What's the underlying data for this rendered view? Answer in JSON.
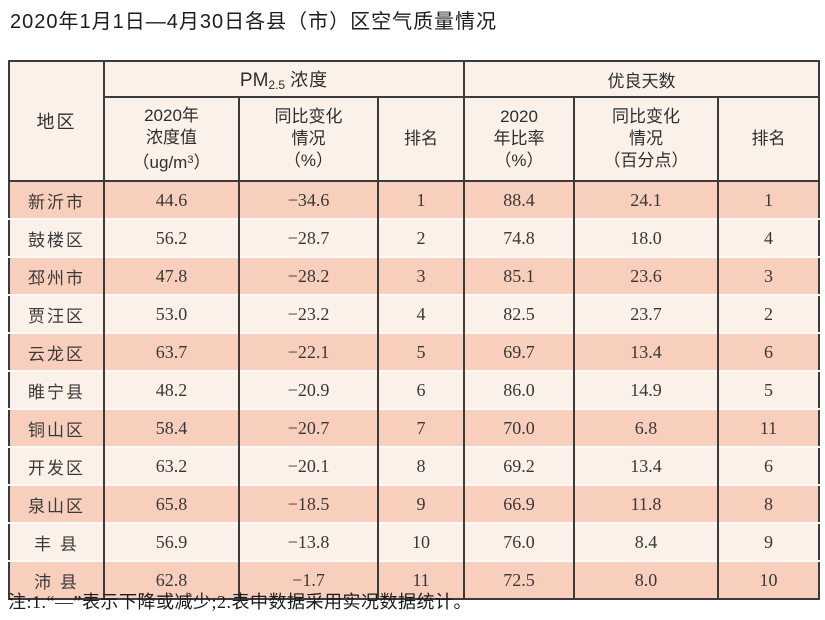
{
  "title": "2020年1月1日—4月30日各县（市）区空气质量情况",
  "table": {
    "header": {
      "region": "地区",
      "pm_group": {
        "base": "PM",
        "sub": "2.5",
        "label": "浓度"
      },
      "good_group": "优良天数",
      "pm_value": {
        "line1": "2020年",
        "line2": "浓度值",
        "line3_pre": "（ug/m",
        "line3_sup": "3",
        "line3_post": "）"
      },
      "pm_change": {
        "line1": "同比变化",
        "line2": "情况",
        "line3": "（%）"
      },
      "pm_rank": "排名",
      "good_ratio": {
        "line1": "2020",
        "line2": "年比率",
        "line3": "（%）"
      },
      "good_change": {
        "line1": "同比变化",
        "line2": "情况",
        "line3": "（百分点）"
      },
      "good_rank": "排名"
    },
    "rows": [
      {
        "region": "新沂市",
        "pm_value": "44.6",
        "pm_change": "−34.6",
        "pm_rank": "1",
        "good_ratio": "88.4",
        "good_change": "24.1",
        "good_rank": "1"
      },
      {
        "region": "鼓楼区",
        "pm_value": "56.2",
        "pm_change": "−28.7",
        "pm_rank": "2",
        "good_ratio": "74.8",
        "good_change": "18.0",
        "good_rank": "4"
      },
      {
        "region": "邳州市",
        "pm_value": "47.8",
        "pm_change": "−28.2",
        "pm_rank": "3",
        "good_ratio": "85.1",
        "good_change": "23.6",
        "good_rank": "3"
      },
      {
        "region": "贾汪区",
        "pm_value": "53.0",
        "pm_change": "−23.2",
        "pm_rank": "4",
        "good_ratio": "82.5",
        "good_change": "23.7",
        "good_rank": "2"
      },
      {
        "region": "云龙区",
        "pm_value": "63.7",
        "pm_change": "−22.1",
        "pm_rank": "5",
        "good_ratio": "69.7",
        "good_change": "13.4",
        "good_rank": "6"
      },
      {
        "region": "睢宁县",
        "pm_value": "48.2",
        "pm_change": "−20.9",
        "pm_rank": "6",
        "good_ratio": "86.0",
        "good_change": "14.9",
        "good_rank": "5"
      },
      {
        "region": "铜山区",
        "pm_value": "58.4",
        "pm_change": "−20.7",
        "pm_rank": "7",
        "good_ratio": "70.0",
        "good_change": "6.8",
        "good_rank": "11"
      },
      {
        "region": "开发区",
        "pm_value": "63.2",
        "pm_change": "−20.1",
        "pm_rank": "8",
        "good_ratio": "69.2",
        "good_change": "13.4",
        "good_rank": "6"
      },
      {
        "region": "泉山区",
        "pm_value": "65.8",
        "pm_change": "−18.5",
        "pm_rank": "9",
        "good_ratio": "66.9",
        "good_change": "11.8",
        "good_rank": "8"
      },
      {
        "region": "丰 县",
        "pm_value": "56.9",
        "pm_change": "−13.8",
        "pm_rank": "10",
        "good_ratio": "76.0",
        "good_change": "8.4",
        "good_rank": "9"
      },
      {
        "region": "沛 县",
        "pm_value": "62.8",
        "pm_change": "−1.7",
        "pm_rank": "11",
        "good_ratio": "72.5",
        "good_change": "8.0",
        "good_rank": "10"
      }
    ]
  },
  "footnote": "注:1.“—”表示下降或减少;2.表中数据采用实况数据统计。",
  "colors": {
    "stripe_dark": "#f8cfbc",
    "stripe_light": "#fbf1e8",
    "header_bg": "#fbf1e8",
    "border": "#3b3b3b",
    "row_gap": "#fdfaf6"
  }
}
